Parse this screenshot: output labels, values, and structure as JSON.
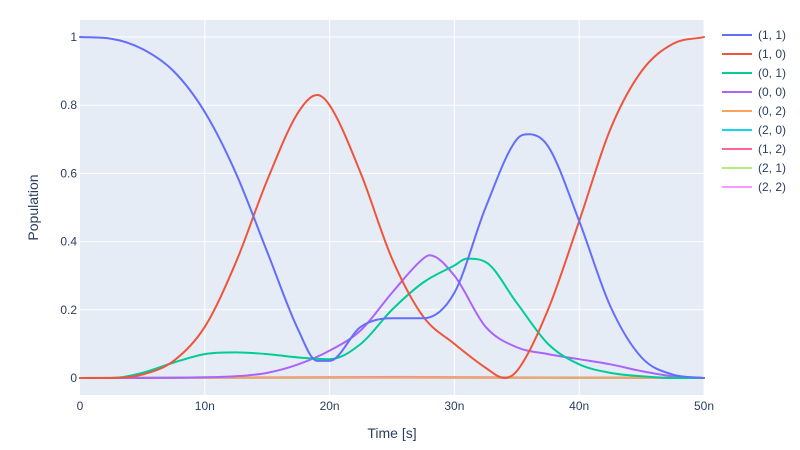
{
  "chart_data": {
    "type": "line",
    "xlabel": "Time [s]",
    "ylabel": "Population",
    "xlim": [
      0,
      5e-08
    ],
    "ylim": [
      -0.05,
      1.05
    ],
    "grid": true,
    "legend_position": "right",
    "plot_background": "#e5ecf6",
    "x_ticks": [
      {
        "value": 0,
        "label": "0"
      },
      {
        "value": 1e-08,
        "label": "10n"
      },
      {
        "value": 2e-08,
        "label": "20n"
      },
      {
        "value": 3e-08,
        "label": "30n"
      },
      {
        "value": 4e-08,
        "label": "40n"
      },
      {
        "value": 5e-08,
        "label": "50n"
      }
    ],
    "y_ticks": [
      {
        "value": 0,
        "label": "0"
      },
      {
        "value": 0.2,
        "label": "0.2"
      },
      {
        "value": 0.4,
        "label": "0.4"
      },
      {
        "value": 0.6,
        "label": "0.6"
      },
      {
        "value": 0.8,
        "label": "0.8"
      },
      {
        "value": 1,
        "label": "1"
      }
    ],
    "series": [
      {
        "name": "(1, 1)",
        "color": "#636efa",
        "x": [
          0,
          2.5e-09,
          5e-09,
          7.5e-09,
          1e-08,
          1.25e-08,
          1.5e-08,
          1.75e-08,
          1.9e-08,
          2e-08,
          2.25e-08,
          2.5e-08,
          2.75e-08,
          3e-08,
          3.25e-08,
          3.5e-08,
          3.6e-08,
          3.75e-08,
          4e-08,
          4.25e-08,
          4.5e-08,
          4.75e-08,
          5e-08
        ],
        "y": [
          1.0,
          0.995,
          0.965,
          0.9,
          0.78,
          0.6,
          0.37,
          0.14,
          0.05,
          0.05,
          0.15,
          0.175,
          0.175,
          0.25,
          0.5,
          0.7,
          0.715,
          0.68,
          0.46,
          0.21,
          0.06,
          0.01,
          0.0
        ]
      },
      {
        "name": "(1, 0)",
        "color": "#ef553b",
        "x": [
          0,
          2.5e-09,
          5e-09,
          7.5e-09,
          1e-08,
          1.25e-08,
          1.5e-08,
          1.75e-08,
          1.9e-08,
          2e-08,
          2.25e-08,
          2.5e-08,
          2.75e-08,
          3e-08,
          3.25e-08,
          3.4e-08,
          3.5e-08,
          3.75e-08,
          4e-08,
          4.25e-08,
          4.5e-08,
          4.75e-08,
          5e-08
        ],
        "y": [
          0.0,
          0.0,
          0.01,
          0.05,
          0.15,
          0.34,
          0.58,
          0.78,
          0.83,
          0.8,
          0.6,
          0.35,
          0.18,
          0.1,
          0.03,
          0.0,
          0.02,
          0.2,
          0.46,
          0.73,
          0.9,
          0.98,
          1.0
        ]
      },
      {
        "name": "(0, 1)",
        "color": "#00cc96",
        "x": [
          0,
          2.5e-09,
          5e-09,
          7.5e-09,
          1e-08,
          1.25e-08,
          1.5e-08,
          1.75e-08,
          2e-08,
          2.25e-08,
          2.5e-08,
          2.75e-08,
          3e-08,
          3.1e-08,
          3.25e-08,
          3.5e-08,
          3.75e-08,
          4e-08,
          4.25e-08,
          4.5e-08,
          4.75e-08,
          5e-08
        ],
        "y": [
          0.0,
          0.0,
          0.015,
          0.045,
          0.07,
          0.075,
          0.07,
          0.06,
          0.055,
          0.1,
          0.2,
          0.28,
          0.33,
          0.35,
          0.34,
          0.22,
          0.1,
          0.04,
          0.015,
          0.005,
          0.0,
          0.0
        ]
      },
      {
        "name": "(0, 0)",
        "color": "#ab63fa",
        "x": [
          0,
          5e-09,
          1e-08,
          1.25e-08,
          1.5e-08,
          1.75e-08,
          2e-08,
          2.25e-08,
          2.5e-08,
          2.75e-08,
          2.8e-08,
          3e-08,
          3.25e-08,
          3.5e-08,
          3.75e-08,
          4e-08,
          4.25e-08,
          4.5e-08,
          4.75e-08,
          5e-08
        ],
        "y": [
          0.0,
          0.0,
          0.002,
          0.005,
          0.015,
          0.04,
          0.08,
          0.14,
          0.25,
          0.35,
          0.36,
          0.3,
          0.15,
          0.09,
          0.07,
          0.055,
          0.04,
          0.02,
          0.005,
          0.0
        ]
      },
      {
        "name": "(0, 2)",
        "color": "#ffa15a",
        "x": [
          0,
          2.5e-08,
          5e-08
        ],
        "y": [
          0.0,
          0.001,
          0.0
        ]
      },
      {
        "name": "(2, 0)",
        "color": "#19d3f3",
        "x": [
          0,
          2.5e-08,
          5e-08
        ],
        "y": [
          0.0,
          0.001,
          0.0
        ]
      },
      {
        "name": "(1, 2)",
        "color": "#ff6692",
        "x": [
          0,
          1e-08,
          2.5e-08,
          4e-08,
          5e-08
        ],
        "y": [
          0.0,
          0.001,
          0.002,
          0.001,
          0.0
        ]
      },
      {
        "name": "(2, 1)",
        "color": "#b6e880",
        "x": [
          0,
          2.5e-08,
          5e-08
        ],
        "y": [
          0.0,
          0.001,
          0.0
        ]
      },
      {
        "name": "(2, 2)",
        "color": "#ff97ff",
        "x": [
          0,
          1e-08,
          2.5e-08,
          4e-08,
          5e-08
        ],
        "y": [
          0.0,
          0.001,
          0.003,
          0.001,
          0.0
        ]
      }
    ]
  }
}
